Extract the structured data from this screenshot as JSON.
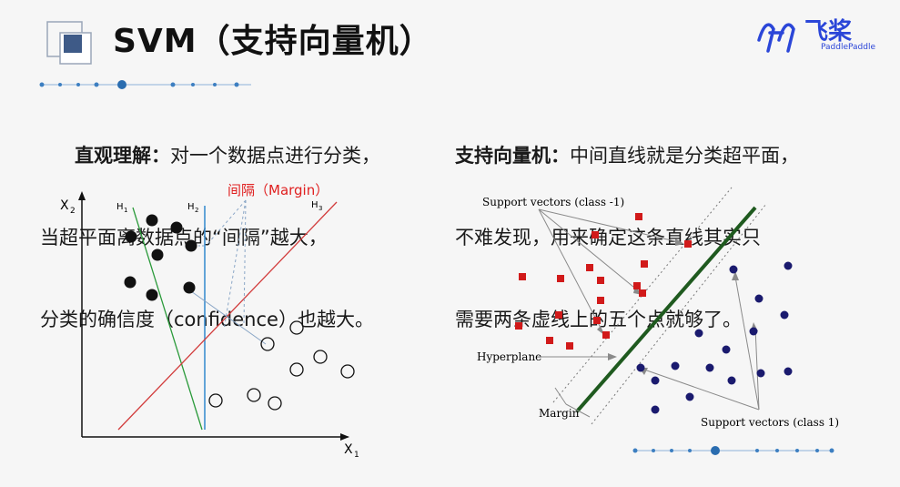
{
  "slide": {
    "title": "SVM（支持向量机）",
    "brand": {
      "name_cn": "飞桨",
      "name_en": "PaddlePaddle"
    }
  },
  "left": {
    "heading": "直观理解：",
    "lines": [
      "对一个数据点进行分类，",
      "当超平面离数据点的“间隔”越大，",
      "分类的确信度（confidence）也越大。"
    ],
    "diagram": {
      "margin_label": "间隔（Margin）",
      "axis_y": "X",
      "axis_y_sub": "2",
      "axis_x": "X",
      "axis_x_sub": "1",
      "h1": "H",
      "h1_sub": "1",
      "h2": "H",
      "h2_sub": "2",
      "h3": "H",
      "h3_sub": "3",
      "margin_color": "#e02020"
    }
  },
  "right": {
    "heading": "支持向量机：",
    "lines": [
      "中间直线就是分类超平面，",
      "不难发现，用来确定这条直线其实只",
      "需要两条虚线上的五个点就够了。"
    ],
    "diagram": {
      "sv_class_neg": "Support vectors (class -1)",
      "sv_class_pos": "Support vectors (class 1)",
      "hyperplane": "Hyperplane",
      "margin": "Margin",
      "square_color": "#d11a1a",
      "dot_color": "#1a1a6e",
      "hyperplane_color": "#1f5a1f"
    }
  }
}
